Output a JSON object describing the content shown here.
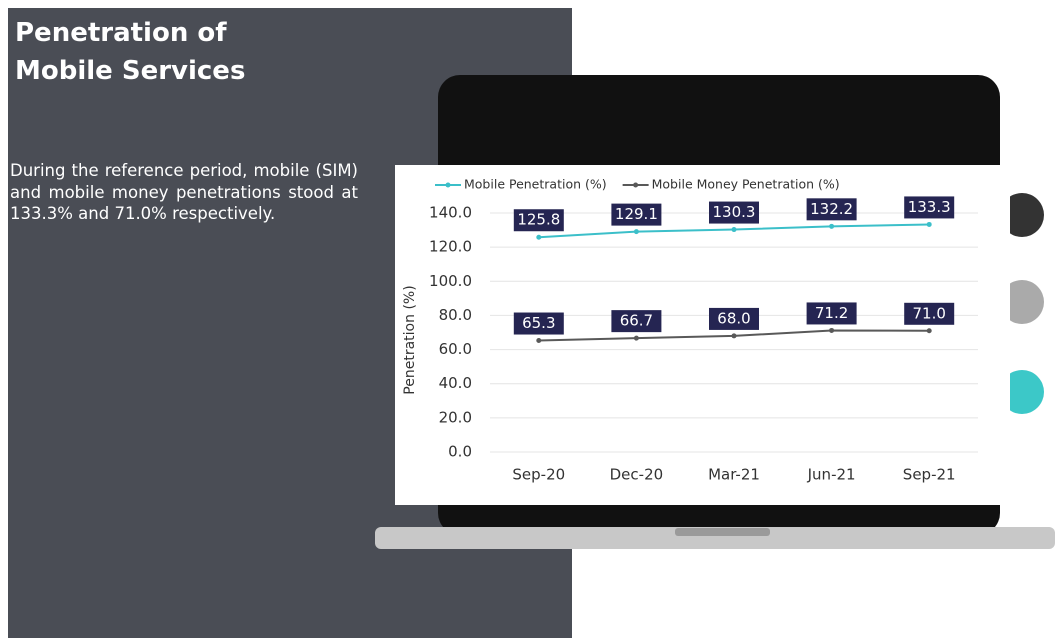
{
  "title": "Penetration of Mobile Services",
  "text": "During the reference period, mobile (SIM) and mobile money penetrations stood at 133.3% and 71.0% respectively.",
  "chart_data": {
    "type": "line",
    "y_label": "Penetration (%)",
    "categories": [
      "Sep-20",
      "Dec-20",
      "Mar-21",
      "Jun-21",
      "Sep-21"
    ],
    "series": [
      {
        "name": "Mobile Penetration (%)",
        "color": "#3bbfc9",
        "values": [
          125.8,
          129.1,
          130.3,
          132.2,
          133.3
        ],
        "value_labels": [
          "125.8",
          "129.1",
          "130.3",
          "132.2",
          "133.3"
        ]
      },
      {
        "name": "Mobile Money Penetration (%)",
        "color": "#595959",
        "values": [
          65.3,
          66.7,
          68.0,
          71.2,
          71.0
        ],
        "value_labels": [
          "65.3",
          "66.7",
          "68.0",
          "71.2",
          "71.0"
        ]
      }
    ],
    "ylim": [
      0,
      140
    ],
    "yticks": [
      {
        "value": 0,
        "label": "0.0"
      },
      {
        "value": 20,
        "label": "20.0"
      },
      {
        "value": 40,
        "label": "40.0"
      },
      {
        "value": 60,
        "label": "60.0"
      },
      {
        "value": 80,
        "label": "80.0"
      },
      {
        "value": 100,
        "label": "100.0"
      },
      {
        "value": 120,
        "label": "120.0"
      },
      {
        "value": 140,
        "label": "140.0"
      }
    ],
    "grid": true,
    "legend": "top"
  }
}
